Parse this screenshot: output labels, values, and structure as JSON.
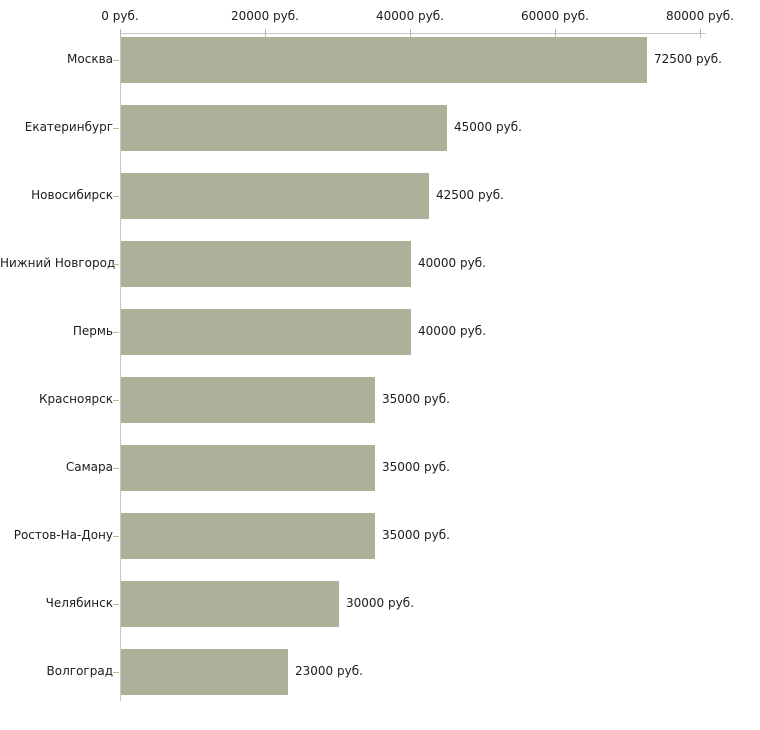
{
  "chart_data": {
    "type": "bar",
    "orientation": "horizontal",
    "title": "",
    "xlabel": "",
    "ylabel": "",
    "grid": "off",
    "legend": "none",
    "unit": "руб.",
    "categories": [
      "Москва",
      "Екатеринбург",
      "Новосибирск",
      "Нижний Новгород",
      "Пермь",
      "Красноярск",
      "Самара",
      "Ростов-На-Дону",
      "Челябинск",
      "Волгоград"
    ],
    "values": [
      72500,
      45000,
      42500,
      40000,
      40000,
      35000,
      35000,
      35000,
      30000,
      23000
    ],
    "value_labels": [
      "72500 руб.",
      "45000 руб.",
      "42500 руб.",
      "40000 руб.",
      "40000 руб.",
      "35000 руб.",
      "35000 руб.",
      "35000 руб.",
      "30000 руб.",
      "23000 руб."
    ],
    "x_axis": {
      "range": [
        0,
        80000
      ],
      "tick_values": [
        0,
        20000,
        40000,
        60000,
        80000
      ],
      "tick_labels": [
        "0 руб.",
        "20000 руб.",
        "40000 руб.",
        "60000 руб.",
        "80000 руб."
      ]
    },
    "colors": {
      "bar": "#acb199",
      "axis_line": "#c8c8c8",
      "tick_mark": "#b8bc8e",
      "text": "#1c1c1c"
    }
  }
}
